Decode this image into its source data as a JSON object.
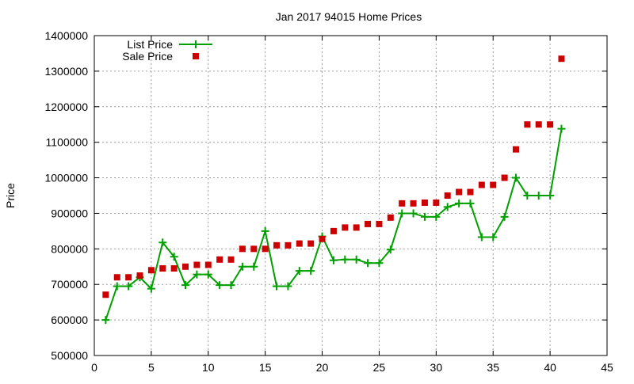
{
  "chart_data": {
    "type": "line",
    "title": "Jan 2017 94015 Home Prices",
    "xlabel": "",
    "ylabel": "Price",
    "xlim": [
      0,
      45
    ],
    "ylim": [
      500000,
      1400000
    ],
    "xticks": [
      0,
      5,
      10,
      15,
      20,
      25,
      30,
      35,
      40,
      45
    ],
    "yticks": [
      500000,
      600000,
      700000,
      800000,
      900000,
      1000000,
      1100000,
      1200000,
      1300000,
      1400000
    ],
    "grid": true,
    "legend_position": "top-left",
    "x": [
      1,
      2,
      3,
      4,
      5,
      6,
      7,
      8,
      9,
      10,
      11,
      12,
      13,
      14,
      15,
      16,
      17,
      18,
      19,
      20,
      21,
      22,
      23,
      24,
      25,
      26,
      27,
      28,
      29,
      30,
      31,
      32,
      33,
      34,
      35,
      36,
      37,
      38,
      39,
      40,
      41
    ],
    "series": [
      {
        "name": "List Price",
        "style": "lines+points",
        "color": "#00a000",
        "values": [
          600000,
          695000,
          695000,
          720000,
          688000,
          818000,
          778000,
          698000,
          728000,
          728000,
          698000,
          698000,
          750000,
          750000,
          850000,
          695000,
          695000,
          738000,
          738000,
          835000,
          768000,
          770000,
          770000,
          760000,
          760000,
          798000,
          900000,
          900000,
          890000,
          890000,
          918000,
          928000,
          928000,
          833000,
          833000,
          890000,
          1000000,
          950000,
          950000,
          950000,
          1138000
        ]
      },
      {
        "name": "Sale Price",
        "style": "points",
        "color": "#cc0000",
        "values": [
          671000,
          720000,
          720000,
          725000,
          740000,
          745000,
          745000,
          750000,
          755000,
          755000,
          770000,
          770000,
          800000,
          800000,
          800000,
          810000,
          810000,
          815000,
          815000,
          828000,
          850000,
          860000,
          860000,
          870000,
          870000,
          888000,
          928000,
          928000,
          930000,
          930000,
          950000,
          960000,
          960000,
          980000,
          980000,
          1000000,
          1080000,
          1150000,
          1150000,
          1150000,
          1335000
        ]
      }
    ]
  }
}
